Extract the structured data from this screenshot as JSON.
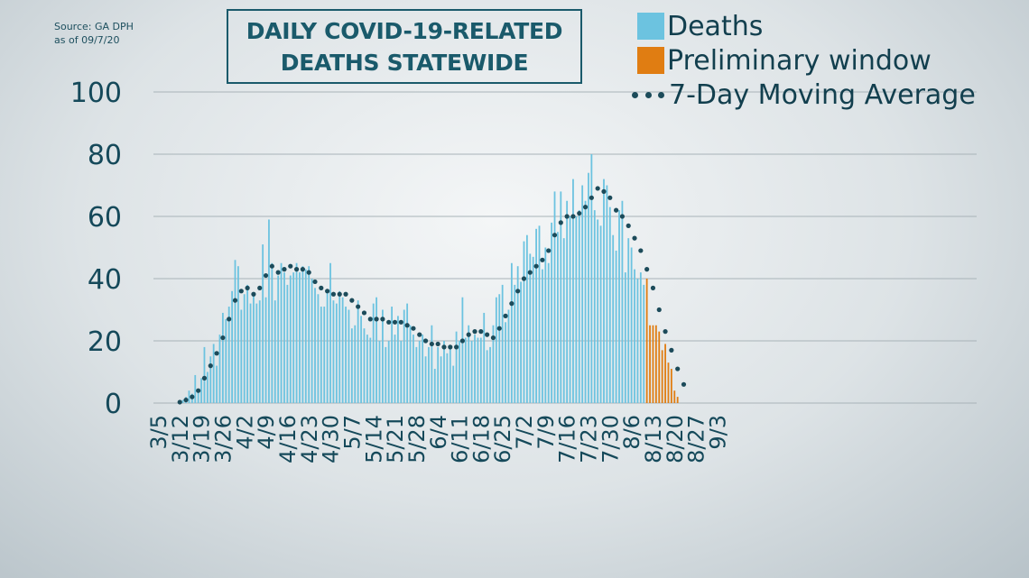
{
  "source": {
    "line1": "Source: GA DPH",
    "line2": "as of 09/7/20"
  },
  "title": {
    "line1": "DAILY COVID-19-RELATED",
    "line2": "DEATHS STATEWIDE"
  },
  "legend": {
    "deaths": "Deaths",
    "preliminary": "Preliminary window",
    "average": "7-Day Moving Average"
  },
  "colors": {
    "deaths": "#6cc3e0",
    "preliminary": "#e07d12",
    "average": "#1c4b5a",
    "grid": "#a8b3b8",
    "text": "#15495a"
  },
  "chart_data": {
    "type": "bar",
    "x_start": "3/5",
    "xticks": [
      "3/5",
      "3/12",
      "3/19",
      "3/26",
      "4/2",
      "4/9",
      "4/16",
      "4/23",
      "4/30",
      "5/7",
      "5/14",
      "5/21",
      "5/28",
      "6/4",
      "6/11",
      "6/18",
      "6/25",
      "7/2",
      "7/9",
      "7/16",
      "7/23",
      "7/30",
      "8/6",
      "8/13",
      "8/20",
      "8/27",
      "9/3"
    ],
    "yticks": [
      0,
      20,
      40,
      60,
      80,
      100
    ],
    "ylim": [
      0,
      100
    ],
    "grid": true,
    "series": [
      {
        "name": "Deaths",
        "values": [
          0,
          0,
          0,
          0,
          0,
          0,
          0,
          0,
          1,
          1,
          2,
          4,
          3,
          9,
          4,
          8,
          18,
          10,
          15,
          19,
          12,
          22,
          29,
          27,
          31,
          36,
          46,
          44,
          30,
          35,
          38,
          32,
          35,
          32,
          33,
          51,
          34,
          59,
          45,
          33,
          41,
          45,
          42,
          38,
          41,
          42,
          45,
          42,
          44,
          43,
          44,
          40,
          37,
          35,
          31,
          31,
          36,
          45,
          33,
          32,
          36,
          34,
          31,
          30,
          24,
          25,
          33,
          28,
          24,
          22,
          21,
          32,
          34,
          20,
          30,
          18,
          20,
          31,
          22,
          28,
          20,
          30,
          32,
          25,
          22,
          18,
          20,
          22,
          15,
          18,
          25,
          11,
          18,
          15,
          20,
          16,
          18,
          12,
          23,
          20,
          34,
          21,
          25,
          20,
          22,
          21,
          21,
          29,
          17,
          18,
          25,
          34,
          35,
          38,
          26,
          30,
          45,
          38,
          44,
          39,
          52,
          54,
          48,
          47,
          56,
          57,
          43,
          50,
          45,
          58,
          68,
          55,
          68,
          53,
          65,
          60,
          72,
          60,
          62,
          70,
          65,
          74,
          80,
          62,
          59,
          57,
          72,
          70,
          63,
          54,
          49,
          62,
          65,
          42,
          53,
          50,
          43,
          40,
          42,
          38,
          0,
          0,
          0,
          0,
          0,
          0,
          0,
          0,
          0,
          0,
          0,
          0,
          0,
          0,
          0,
          0
        ]
      },
      {
        "name": "Preliminary window",
        "values": [
          0,
          0,
          0,
          0,
          0,
          0,
          0,
          0,
          0,
          0,
          0,
          0,
          0,
          0,
          0,
          0,
          0,
          0,
          0,
          0,
          0,
          0,
          0,
          0,
          0,
          0,
          0,
          0,
          0,
          0,
          0,
          0,
          0,
          0,
          0,
          0,
          0,
          0,
          0,
          0,
          0,
          0,
          0,
          0,
          0,
          0,
          0,
          0,
          0,
          0,
          0,
          0,
          0,
          0,
          0,
          0,
          0,
          0,
          0,
          0,
          0,
          0,
          0,
          0,
          0,
          0,
          0,
          0,
          0,
          0,
          0,
          0,
          0,
          0,
          0,
          0,
          0,
          0,
          0,
          0,
          0,
          0,
          0,
          0,
          0,
          0,
          0,
          0,
          0,
          0,
          0,
          0,
          0,
          0,
          0,
          0,
          0,
          0,
          0,
          0,
          0,
          0,
          0,
          0,
          0,
          0,
          0,
          0,
          0,
          0,
          0,
          0,
          0,
          0,
          0,
          0,
          0,
          0,
          0,
          0,
          0,
          0,
          0,
          0,
          0,
          0,
          0,
          0,
          0,
          0,
          0,
          0,
          0,
          0,
          0,
          0,
          0,
          0,
          0,
          0,
          0,
          0,
          0,
          0,
          0,
          0,
          0,
          0,
          0,
          0,
          0,
          0,
          0,
          0,
          0,
          0,
          0,
          0,
          0,
          0,
          40,
          25,
          25,
          25,
          23,
          17,
          19,
          13,
          11,
          4,
          2,
          0,
          0,
          0,
          0,
          0
        ]
      },
      {
        "name": "7-Day Moving Average",
        "type": "line",
        "values": [
          null,
          null,
          null,
          null,
          null,
          null,
          null,
          null,
          0.3,
          0.5,
          1,
          1.5,
          2,
          3,
          4,
          6,
          8,
          10,
          12,
          14,
          16,
          18,
          21,
          24,
          27,
          30,
          33,
          35,
          36,
          37,
          37,
          36,
          35,
          36,
          37,
          39,
          41,
          43,
          44,
          43,
          42,
          42,
          43,
          43,
          44,
          43,
          43,
          44,
          43,
          43,
          42,
          41,
          39,
          38,
          37,
          36,
          36,
          36,
          35,
          35,
          35,
          36,
          35,
          34,
          33,
          32,
          31,
          30,
          29,
          28,
          27,
          27,
          27,
          27,
          27,
          27,
          26,
          26,
          26,
          27,
          26,
          25,
          25,
          25,
          24,
          23,
          22,
          21,
          20,
          20,
          19,
          19,
          19,
          18,
          18,
          18,
          18,
          17,
          18,
          19,
          20,
          21,
          22,
          22,
          23,
          23,
          23,
          23,
          22,
          22,
          21,
          22,
          24,
          26,
          28,
          30,
          32,
          34,
          36,
          38,
          40,
          41,
          42,
          43,
          44,
          45,
          46,
          47,
          49,
          51,
          54,
          57,
          58,
          59,
          60,
          60,
          60,
          61,
          61,
          62,
          63,
          64,
          66,
          68,
          69,
          68,
          68,
          67,
          66,
          64,
          62,
          61,
          60,
          59,
          57,
          55,
          53,
          51,
          49,
          46,
          43,
          40,
          37,
          33,
          30,
          26,
          23,
          20,
          17,
          14,
          11,
          8,
          6
        ]
      }
    ]
  }
}
